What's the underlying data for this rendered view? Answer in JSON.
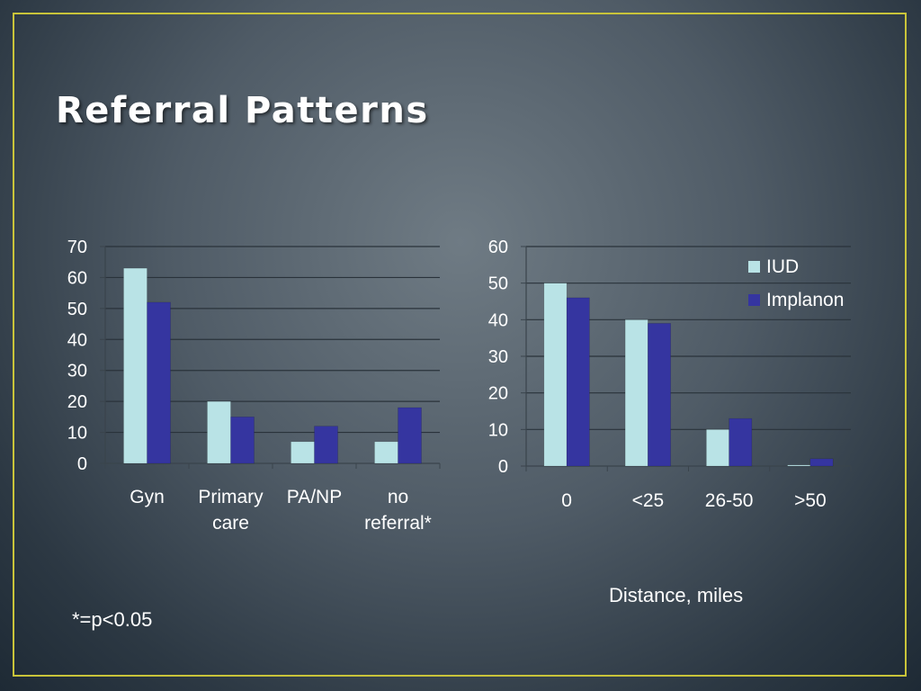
{
  "slide": {
    "title": "Referral Patterns",
    "footnote": "*=p<0.05",
    "frame_color": "#c9c43a"
  },
  "colors": {
    "IUD": "#b9e3e6",
    "Implanon": "#3535a0"
  },
  "chart_data": [
    {
      "type": "bar",
      "title": "",
      "categories": [
        [
          "Gyn"
        ],
        [
          "Primary",
          "care"
        ],
        [
          "PA/NP"
        ],
        [
          "no",
          "referral*"
        ]
      ],
      "series": [
        {
          "name": "IUD",
          "values": [
            63,
            20,
            7,
            7
          ]
        },
        {
          "name": "Implanon",
          "values": [
            52,
            15,
            12,
            18
          ]
        }
      ],
      "ylim": [
        0,
        70
      ],
      "yticks": [
        0,
        10,
        20,
        30,
        40,
        50,
        60,
        70
      ],
      "xlabel": "",
      "ylabel": "",
      "grid": true,
      "legend": "none"
    },
    {
      "type": "bar",
      "title": "",
      "categories": [
        [
          "0"
        ],
        [
          "<25"
        ],
        [
          "26-50"
        ],
        [
          ">50"
        ]
      ],
      "series": [
        {
          "name": "IUD",
          "values": [
            50,
            40,
            10,
            0.3
          ]
        },
        {
          "name": "Implanon",
          "values": [
            46,
            39,
            13,
            2
          ]
        }
      ],
      "ylim": [
        0,
        60
      ],
      "yticks": [
        0,
        10,
        20,
        30,
        40,
        50,
        60
      ],
      "xlabel": "Distance, miles",
      "ylabel": "",
      "grid": true,
      "legend": "top-right",
      "legend_entries": [
        "IUD",
        "Implanon"
      ]
    }
  ]
}
